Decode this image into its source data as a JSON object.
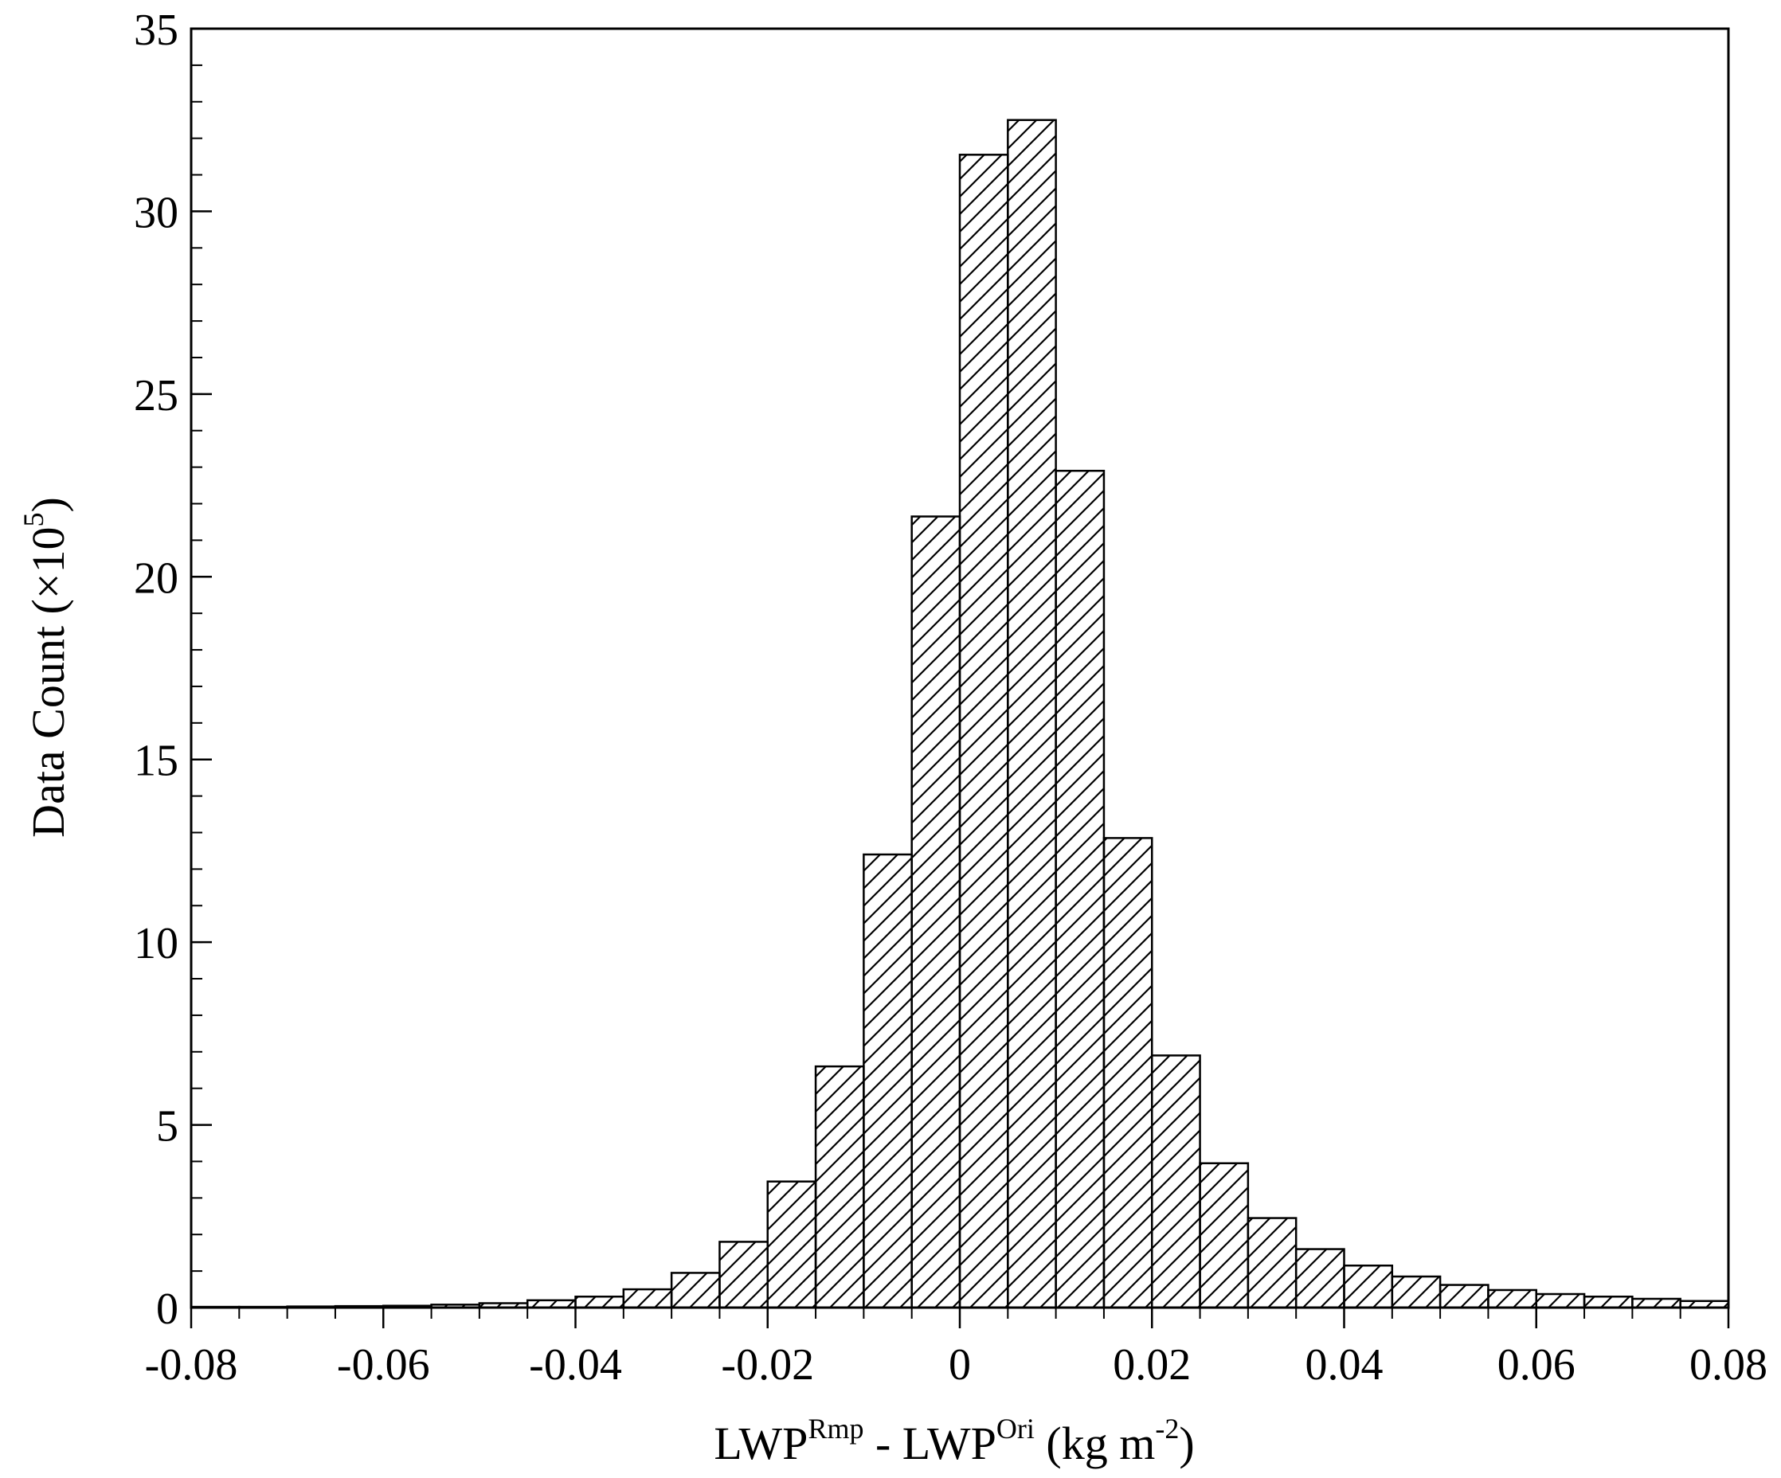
{
  "chart_data": {
    "type": "bar",
    "title": "",
    "xlabel": {
      "base1": "LWP",
      "sup1": "Rmp",
      "mid": " - LWP",
      "sup2": "Ori",
      "tail": " (kg m",
      "sup3": "-2",
      "end": ")"
    },
    "ylabel": {
      "base": "Data Count (×10",
      "sup": "5",
      "end": ")"
    },
    "xlim": [
      -0.08,
      0.08
    ],
    "ylim": [
      0,
      35
    ],
    "xticks": [
      -0.08,
      -0.06,
      -0.04,
      -0.02,
      0,
      0.02,
      0.04,
      0.06,
      0.08
    ],
    "xtick_labels": [
      "-0.08",
      "-0.06",
      "-0.04",
      "-0.02",
      "0",
      "0.02",
      "0.04",
      "0.06",
      "0.08"
    ],
    "yticks": [
      0,
      5,
      10,
      15,
      20,
      25,
      30,
      35
    ],
    "ytick_labels": [
      "0",
      "5",
      "10",
      "15",
      "20",
      "25",
      "30",
      "35"
    ],
    "bin_width": 0.005,
    "bins": [
      {
        "x0": -0.08,
        "value": 0.02
      },
      {
        "x0": -0.075,
        "value": 0.02
      },
      {
        "x0": -0.07,
        "value": 0.03
      },
      {
        "x0": -0.065,
        "value": 0.04
      },
      {
        "x0": -0.06,
        "value": 0.05
      },
      {
        "x0": -0.055,
        "value": 0.08
      },
      {
        "x0": -0.05,
        "value": 0.12
      },
      {
        "x0": -0.045,
        "value": 0.2
      },
      {
        "x0": -0.04,
        "value": 0.3
      },
      {
        "x0": -0.035,
        "value": 0.5
      },
      {
        "x0": -0.03,
        "value": 0.95
      },
      {
        "x0": -0.025,
        "value": 1.8
      },
      {
        "x0": -0.02,
        "value": 3.45
      },
      {
        "x0": -0.015,
        "value": 6.6
      },
      {
        "x0": -0.01,
        "value": 12.4
      },
      {
        "x0": -0.005,
        "value": 21.65
      },
      {
        "x0": 0.0,
        "value": 31.55
      },
      {
        "x0": 0.005,
        "value": 32.5
      },
      {
        "x0": 0.01,
        "value": 22.9
      },
      {
        "x0": 0.015,
        "value": 12.85
      },
      {
        "x0": 0.02,
        "value": 6.9
      },
      {
        "x0": 0.025,
        "value": 3.95
      },
      {
        "x0": 0.03,
        "value": 2.45
      },
      {
        "x0": 0.035,
        "value": 1.6
      },
      {
        "x0": 0.04,
        "value": 1.15
      },
      {
        "x0": 0.045,
        "value": 0.85
      },
      {
        "x0": 0.05,
        "value": 0.62
      },
      {
        "x0": 0.055,
        "value": 0.48
      },
      {
        "x0": 0.06,
        "value": 0.37
      },
      {
        "x0": 0.065,
        "value": 0.3
      },
      {
        "x0": 0.07,
        "value": 0.24
      },
      {
        "x0": 0.075,
        "value": 0.18
      }
    ],
    "grid": false,
    "legend": "none",
    "bar_fill": "diagonal-hatch",
    "colors": {
      "stroke": "#000000",
      "background": "#ffffff"
    }
  }
}
